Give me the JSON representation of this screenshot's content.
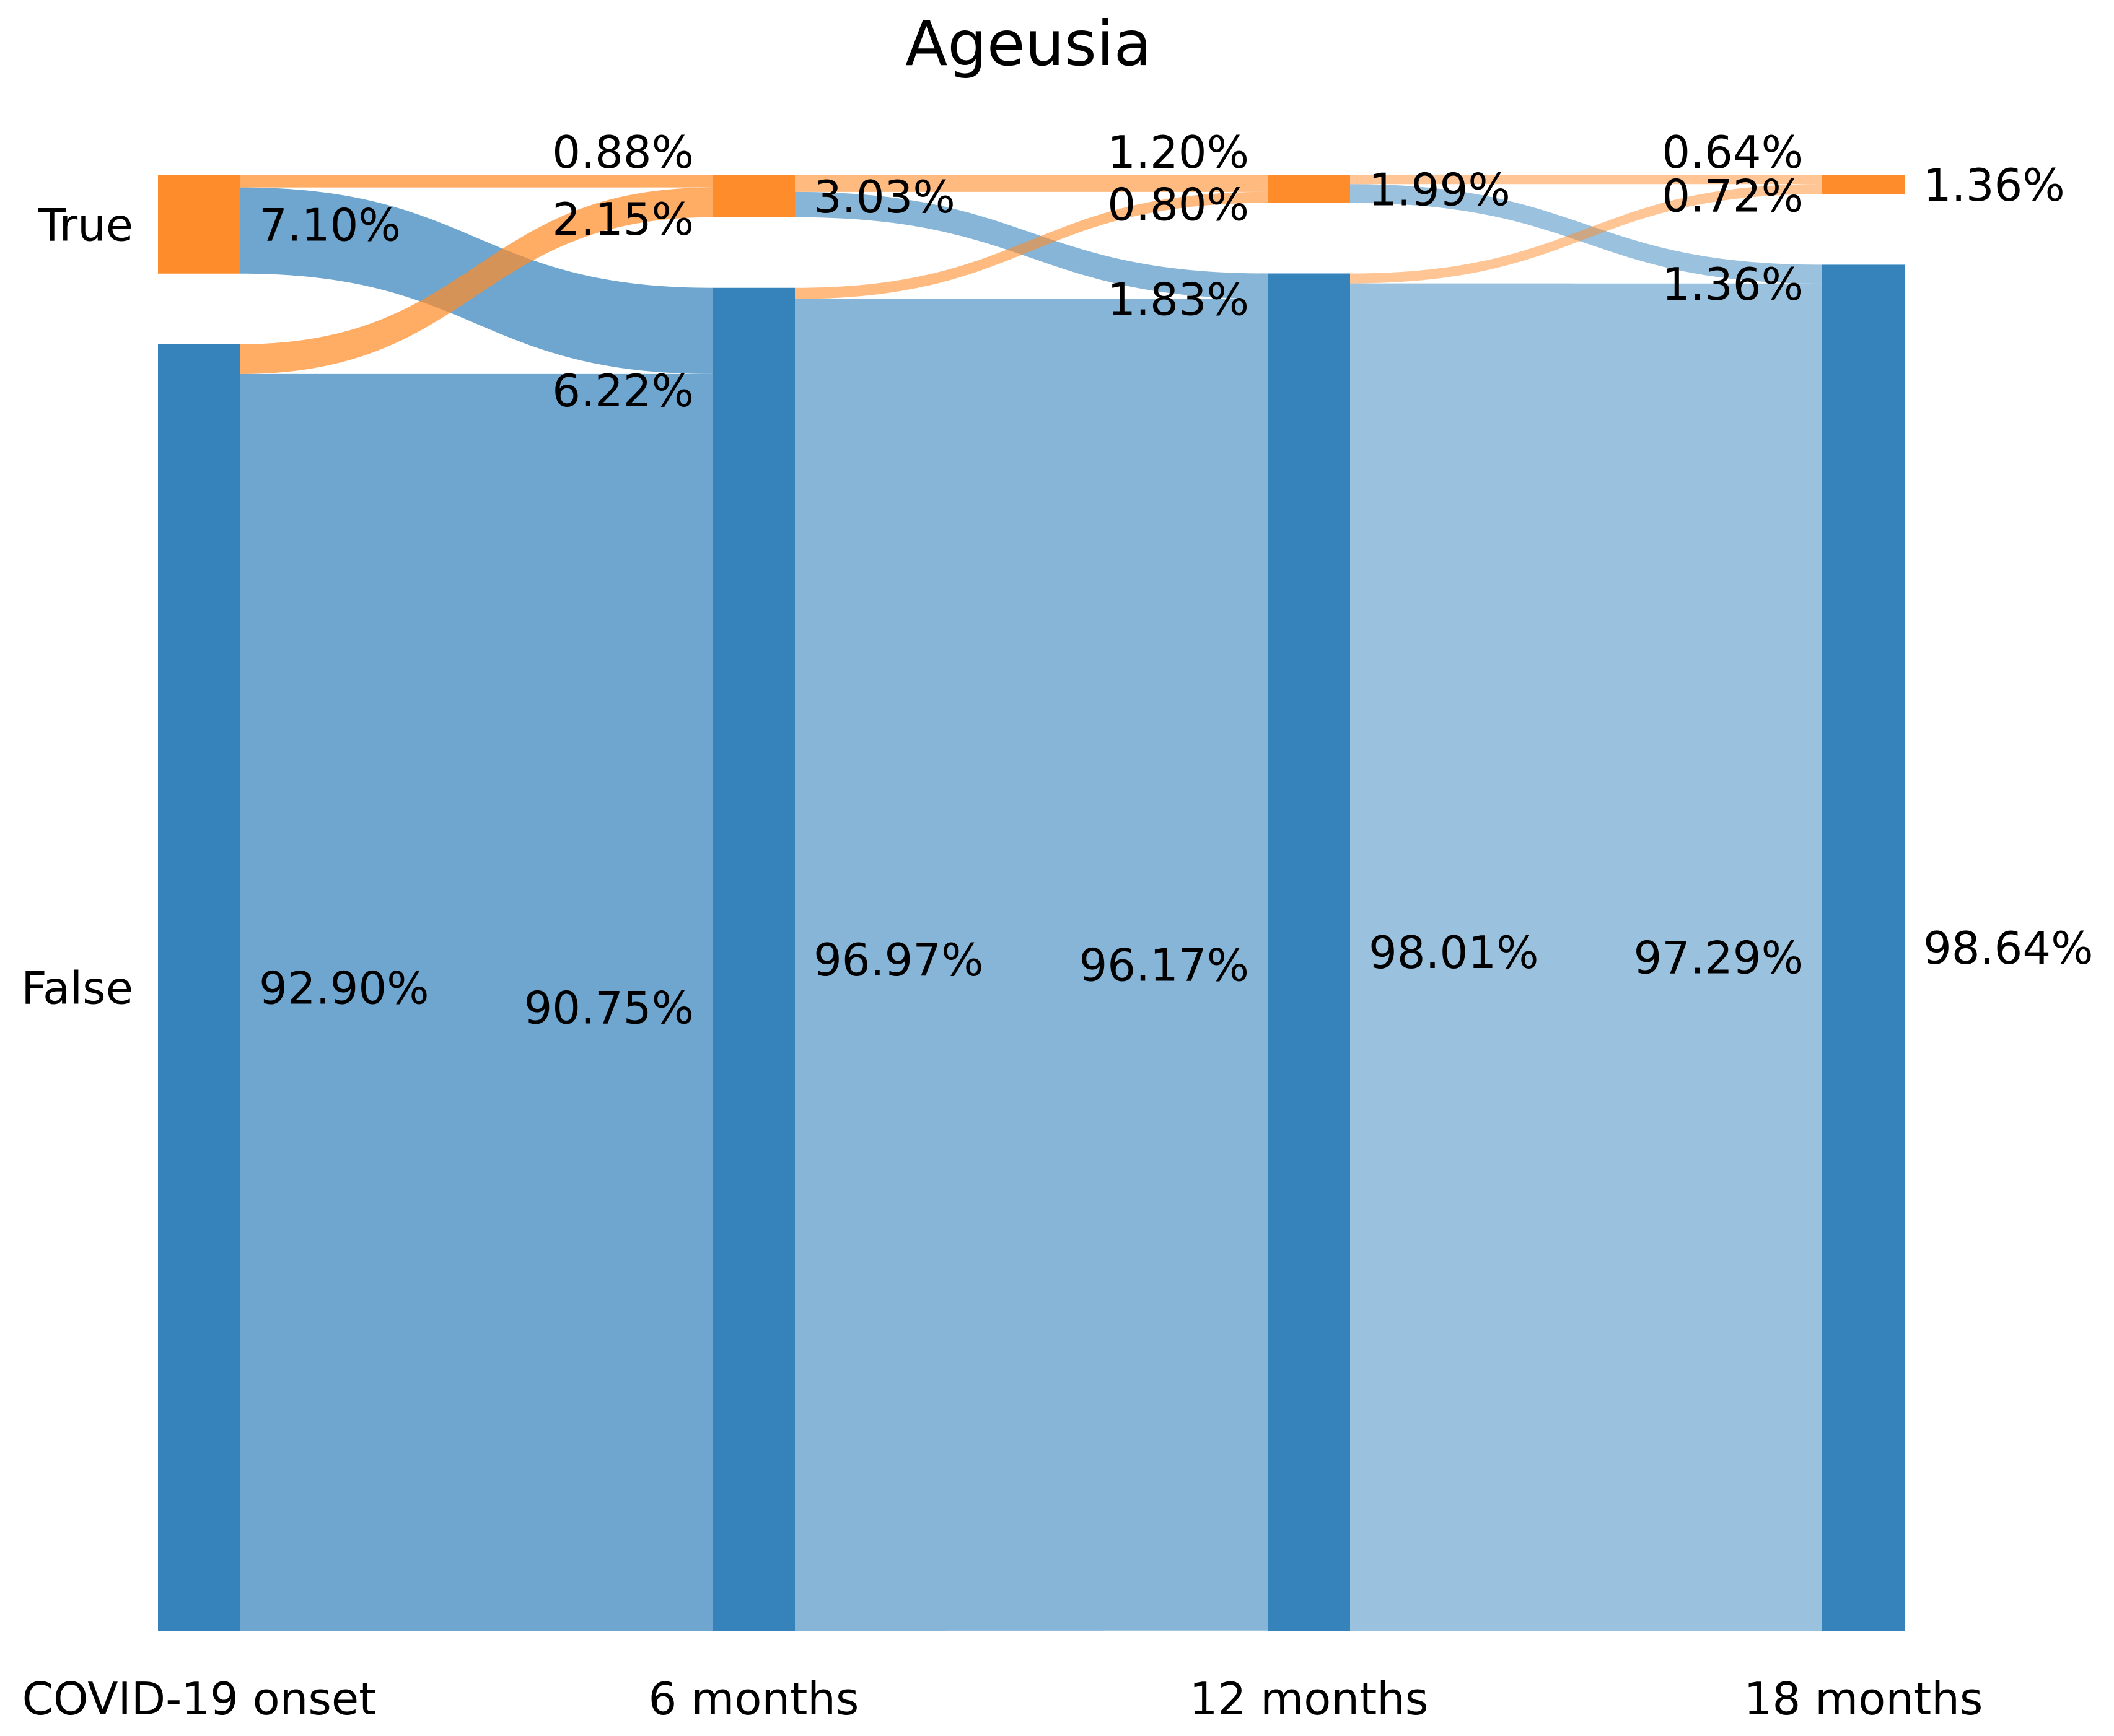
{
  "chart_data": {
    "type": "sankey",
    "title": "Ageusia",
    "categories": [
      "True",
      "False"
    ],
    "stages": [
      "COVID-19 onset",
      "6 months",
      "12 months",
      "18 months"
    ],
    "colors": {
      "True": "#ff8c2a",
      "False": "#3683bc"
    },
    "nodes": [
      {
        "stage": "COVID-19 onset",
        "True": 7.1,
        "False": 92.9
      },
      {
        "stage": "6 months",
        "True": 3.03,
        "False": 96.97
      },
      {
        "stage": "12 months",
        "True": 1.99,
        "False": 98.01
      },
      {
        "stage": "18 months",
        "True": 1.36,
        "False": 98.64
      }
    ],
    "flows": [
      {
        "from_stage": "COVID-19 onset",
        "to_stage": "6 months",
        "from": "True",
        "to": "True",
        "value": 0.88
      },
      {
        "from_stage": "COVID-19 onset",
        "to_stage": "6 months",
        "from": "True",
        "to": "False",
        "value": 6.22
      },
      {
        "from_stage": "COVID-19 onset",
        "to_stage": "6 months",
        "from": "False",
        "to": "True",
        "value": 2.15
      },
      {
        "from_stage": "COVID-19 onset",
        "to_stage": "6 months",
        "from": "False",
        "to": "False",
        "value": 90.75
      },
      {
        "from_stage": "6 months",
        "to_stage": "12 months",
        "from": "True",
        "to": "True",
        "value": 1.2
      },
      {
        "from_stage": "6 months",
        "to_stage": "12 months",
        "from": "True",
        "to": "False",
        "value": 1.83
      },
      {
        "from_stage": "6 months",
        "to_stage": "12 months",
        "from": "False",
        "to": "True",
        "value": 0.8
      },
      {
        "from_stage": "6 months",
        "to_stage": "12 months",
        "from": "False",
        "to": "False",
        "value": 96.17
      },
      {
        "from_stage": "12 months",
        "to_stage": "18 months",
        "from": "True",
        "to": "True",
        "value": 0.64
      },
      {
        "from_stage": "12 months",
        "to_stage": "18 months",
        "from": "True",
        "to": "False",
        "value": 1.36
      },
      {
        "from_stage": "12 months",
        "to_stage": "18 months",
        "from": "False",
        "to": "True",
        "value": 0.72
      },
      {
        "from_stage": "12 months",
        "to_stage": "18 months",
        "from": "False",
        "to": "False",
        "value": 97.29
      }
    ],
    "source_labels": [
      "7.10%",
      "92.90%",
      "3.03%",
      "96.97%",
      "1.99%",
      "98.01%"
    ],
    "target_labels": [
      "0.88%",
      "2.15%",
      "6.22%",
      "90.75%",
      "1.20%",
      "0.80%",
      "1.83%",
      "96.17%",
      "0.64%",
      "0.72%",
      "1.36%",
      "97.29%"
    ],
    "final_labels": [
      "1.36%",
      "98.64%"
    ]
  }
}
